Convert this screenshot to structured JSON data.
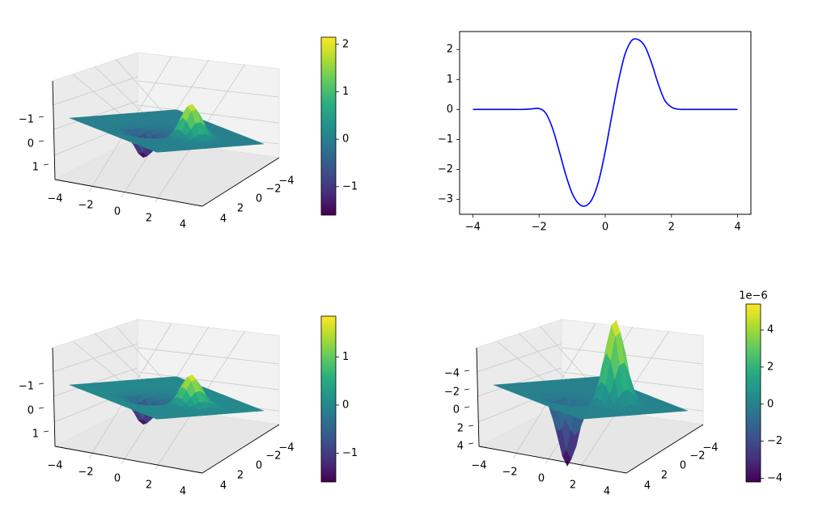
{
  "chart_data": [
    {
      "type": "surface3d",
      "panel": "top-left",
      "x_ticks": [
        "−4",
        "−2",
        "0",
        "2",
        "4"
      ],
      "y_ticks": [
        "−4",
        "−2",
        "0",
        "2",
        "4"
      ],
      "z_ticks": [
        "−1",
        "0",
        "1"
      ],
      "z_peak": 2.1,
      "z_trough": -1.6,
      "colorbar": {
        "ticks": [
          "−1",
          "0",
          "1",
          "2"
        ],
        "range": [
          -1.6,
          2.15
        ]
      }
    },
    {
      "type": "line",
      "panel": "top-right",
      "line_color": "#0000ff",
      "xlim": [
        -4.4,
        4.4
      ],
      "ylim": [
        -3.5,
        2.6
      ],
      "x_ticks": [
        "−4",
        "−2",
        "0",
        "2",
        "4"
      ],
      "y_ticks": [
        "2",
        "1",
        "0",
        "−1",
        "−2",
        "−3"
      ],
      "x": [
        -4,
        -3,
        -2.5,
        -2.2,
        -2,
        -1.8,
        -1.6,
        -1.4,
        -1.2,
        -1,
        -0.8,
        -0.6,
        -0.4,
        -0.2,
        0,
        0.2,
        0.4,
        0.6,
        0.8,
        1,
        1.2,
        1.4,
        1.6,
        1.8,
        2,
        2.2,
        2.5,
        3,
        4
      ],
      "y": [
        0,
        0,
        0,
        0.02,
        0.03,
        -0.12,
        -0.6,
        -1.35,
        -2.15,
        -2.8,
        -3.15,
        -3.22,
        -3.0,
        -2.4,
        -1.4,
        -0.2,
        0.95,
        1.85,
        2.3,
        2.33,
        2.1,
        1.55,
        0.85,
        0.3,
        0.08,
        0.01,
        0,
        0,
        0
      ]
    },
    {
      "type": "surface3d",
      "panel": "bottom-left",
      "x_ticks": [
        "−4",
        "−2",
        "0",
        "2",
        "4"
      ],
      "y_ticks": [
        "−4",
        "−2",
        "0",
        "2",
        "4"
      ],
      "z_ticks": [
        "−1",
        "0",
        "1"
      ],
      "z_peak": 1.85,
      "z_trough": -1.6,
      "colorbar": {
        "ticks": [
          "−1",
          "0",
          "1"
        ],
        "range": [
          -1.6,
          1.85
        ]
      }
    },
    {
      "type": "surface3d",
      "panel": "bottom-right",
      "x_ticks": [
        "−4",
        "−2",
        "0",
        "2",
        "4"
      ],
      "y_ticks": [
        "−4",
        "−2",
        "0",
        "2",
        "4"
      ],
      "z_ticks": [
        "−4",
        "−2",
        "0",
        "2",
        "4"
      ],
      "z_peak": 5.3,
      "z_trough": -4.2,
      "colorbar": {
        "ticks": [
          "−4",
          "−2",
          "0",
          "2",
          "4"
        ],
        "range": [
          -4.2,
          5.4
        ],
        "offset_label": "1e−6"
      }
    }
  ]
}
